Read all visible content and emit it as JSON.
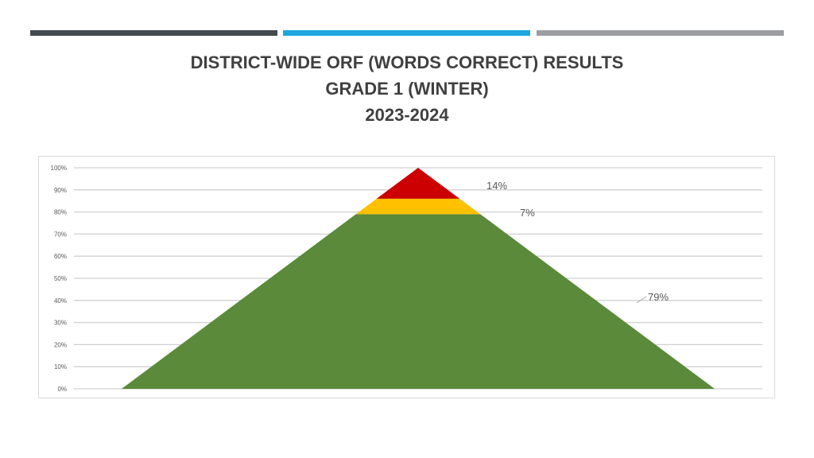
{
  "header": {
    "bars": [
      {
        "color": "#44494e"
      },
      {
        "color": "#1ea6df"
      },
      {
        "color": "#9b9ea1"
      }
    ]
  },
  "title_lines": [
    "DISTRICT-WIDE ORF (WORDS CORRECT) RESULTS",
    "GRADE 1 (WINTER)",
    "2023-2024"
  ],
  "chart_data": {
    "type": "area",
    "shape": "pyramid",
    "title": "",
    "ylim": [
      0,
      100
    ],
    "y_ticks": [
      "0%",
      "10%",
      "20%",
      "30%",
      "40%",
      "50%",
      "60%",
      "70%",
      "80%",
      "90%",
      "100%"
    ],
    "grid": true,
    "legend": "none",
    "segments": [
      {
        "value": 79,
        "label": "79%",
        "color": "#5a8a3a"
      },
      {
        "value": 7,
        "label": "7%",
        "color": "#ffc000"
      },
      {
        "value": 14,
        "label": "14%",
        "color": "#cc0000"
      }
    ]
  }
}
